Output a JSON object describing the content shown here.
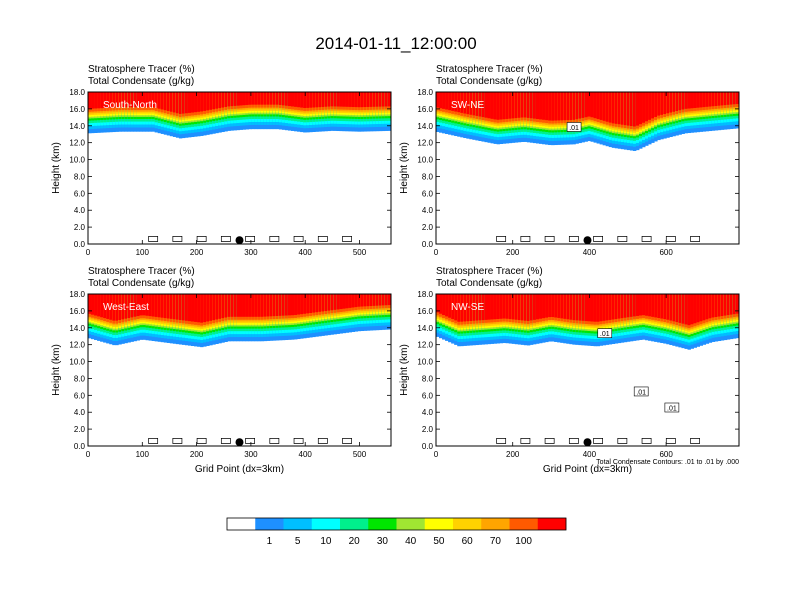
{
  "title": "2014-01-11_12:00:00",
  "colors": {
    "levels": [
      "#ffffff",
      "#1e90ff",
      "#00bfff",
      "#00ffff",
      "#00f08c",
      "#00e600",
      "#a0e632",
      "#ffff00",
      "#ffd200",
      "#ffa500",
      "#ff5a00",
      "#ff0000"
    ]
  },
  "colorbar": {
    "labels": [
      "1",
      "5",
      "10",
      "20",
      "30",
      "40",
      "50",
      "60",
      "70",
      "100"
    ]
  },
  "footer_note": "Total Condensate Contours: .01 to .01 by .000",
  "chart_data": [
    {
      "type": "heatmap",
      "panel_label": "South-North",
      "header_line1": "Stratosphere Tracer   (%)",
      "header_line2": "Total Condensate   (g/kg)",
      "ylabel": "Height (km)",
      "xlabel": "",
      "xlim": [
        0,
        558
      ],
      "ylim": [
        0,
        18
      ],
      "xticks": [
        0,
        100,
        200,
        300,
        400,
        500
      ],
      "yticks": [
        "0.0",
        "2.0",
        "4.0",
        "6.0",
        "8.0",
        "10.0",
        "12.0",
        "14.0",
        "16.0",
        "18.0"
      ],
      "marker_x": 279,
      "contour_labels": [],
      "tracer_profile": [
        [
          0,
          14.3
        ],
        [
          60,
          14.5
        ],
        [
          120,
          14.5
        ],
        [
          170,
          13.7
        ],
        [
          210,
          14.0
        ],
        [
          260,
          14.6
        ],
        [
          300,
          14.8
        ],
        [
          350,
          14.8
        ],
        [
          400,
          14.4
        ],
        [
          450,
          14.6
        ],
        [
          500,
          14.5
        ],
        [
          558,
          14.6
        ]
      ]
    },
    {
      "type": "heatmap",
      "panel_label": "SW-NE",
      "header_line1": "Stratosphere Tracer   (%)",
      "header_line2": "Total Condensate   (g/kg)",
      "ylabel": "Height (km)",
      "xlabel": "",
      "xlim": [
        0,
        790
      ],
      "ylim": [
        0,
        18
      ],
      "xticks": [
        0,
        200,
        400,
        600
      ],
      "yticks": [
        "0.0",
        "2.0",
        "4.0",
        "6.0",
        "8.0",
        "10.0",
        "12.0",
        "14.0",
        "16.0",
        "18.0"
      ],
      "marker_x": 395,
      "contour_labels": [
        {
          "text": ".01",
          "x": 360,
          "y": 13.8
        }
      ],
      "tracer_profile": [
        [
          0,
          14.5
        ],
        [
          80,
          13.7
        ],
        [
          160,
          13.0
        ],
        [
          230,
          13.3
        ],
        [
          300,
          12.9
        ],
        [
          360,
          13.0
        ],
        [
          400,
          13.4
        ],
        [
          460,
          12.6
        ],
        [
          520,
          12.2
        ],
        [
          580,
          13.5
        ],
        [
          650,
          14.3
        ],
        [
          720,
          14.6
        ],
        [
          790,
          14.9
        ]
      ]
    },
    {
      "type": "heatmap",
      "panel_label": "West-East",
      "header_line1": "Stratosphere Tracer   (%)",
      "header_line2": "Total Condensate   (g/kg)",
      "ylabel": "Height (km)",
      "xlabel": "Grid Point (dx=3km)",
      "xlim": [
        0,
        558
      ],
      "ylim": [
        0,
        18
      ],
      "xticks": [
        0,
        100,
        200,
        300,
        400,
        500
      ],
      "yticks": [
        "0.0",
        "2.0",
        "4.0",
        "6.0",
        "8.0",
        "10.0",
        "12.0",
        "14.0",
        "16.0",
        "18.0"
      ],
      "marker_x": 279,
      "contour_labels": [],
      "tracer_profile": [
        [
          0,
          14.0
        ],
        [
          50,
          13.1
        ],
        [
          100,
          13.8
        ],
        [
          160,
          13.3
        ],
        [
          210,
          12.9
        ],
        [
          260,
          13.6
        ],
        [
          320,
          13.6
        ],
        [
          380,
          13.8
        ],
        [
          440,
          14.3
        ],
        [
          500,
          14.8
        ],
        [
          558,
          15.0
        ]
      ]
    },
    {
      "type": "heatmap",
      "panel_label": "NW-SE",
      "header_line1": "Stratosphere Tracer   (%)",
      "header_line2": "Total Condensate   (g/kg)",
      "ylabel": "Height (km)",
      "xlabel": "Grid Point (dx=3km)",
      "xlim": [
        0,
        790
      ],
      "ylim": [
        0,
        18
      ],
      "xticks": [
        0,
        200,
        400,
        600
      ],
      "yticks": [
        "0.0",
        "2.0",
        "4.0",
        "6.0",
        "8.0",
        "10.0",
        "12.0",
        "14.0",
        "16.0",
        "18.0"
      ],
      "marker_x": 395,
      "contour_labels": [
        {
          "text": ".01",
          "x": 440,
          "y": 13.3
        },
        {
          "text": ".01",
          "x": 535,
          "y": 6.4
        },
        {
          "text": ".01",
          "x": 615,
          "y": 4.5
        }
      ],
      "tracer_profile": [
        [
          0,
          14.2
        ],
        [
          60,
          13.0
        ],
        [
          120,
          13.2
        ],
        [
          180,
          13.4
        ],
        [
          240,
          13.1
        ],
        [
          300,
          13.6
        ],
        [
          360,
          13.2
        ],
        [
          420,
          13.0
        ],
        [
          480,
          13.4
        ],
        [
          540,
          13.8
        ],
        [
          600,
          13.3
        ],
        [
          660,
          12.6
        ],
        [
          720,
          13.5
        ],
        [
          790,
          14.0
        ]
      ]
    }
  ]
}
